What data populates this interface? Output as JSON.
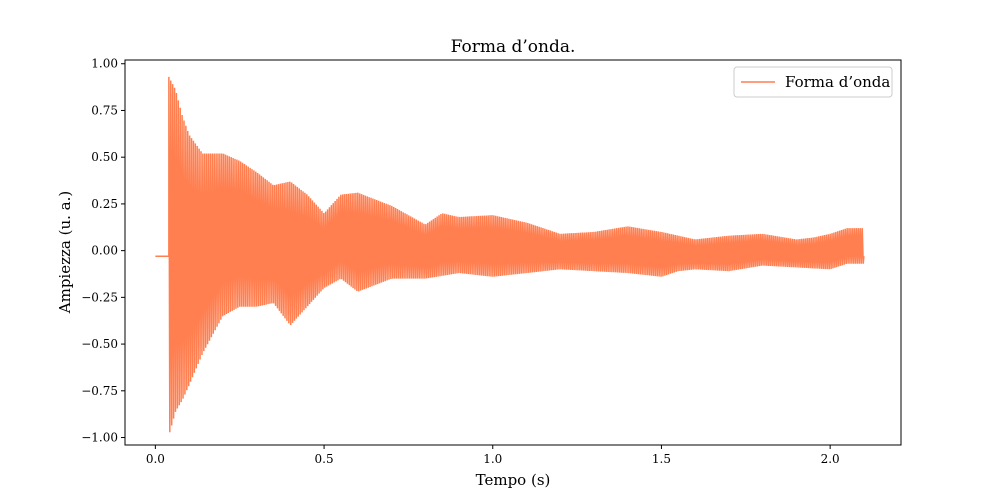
{
  "chart_data": {
    "type": "line",
    "title": "Forma d’onda.",
    "xlabel": "Tempo (s)",
    "ylabel": "Ampiezza (u. a.)",
    "xlim": [
      -0.09,
      2.21
    ],
    "ylim": [
      -1.04,
      1.02
    ],
    "xticks": [
      0.0,
      0.5,
      1.0,
      1.5,
      2.0
    ],
    "xtick_labels": [
      "0.0",
      "0.5",
      "1.0",
      "1.5",
      "2.0"
    ],
    "yticks": [
      1.0,
      0.75,
      0.5,
      0.25,
      0.0,
      -0.25,
      -0.5,
      -0.75,
      -1.0
    ],
    "ytick_labels": [
      "1.00",
      "0.75",
      "0.50",
      "0.25",
      "0.00",
      "−0.25",
      "−0.50",
      "−0.75",
      "−1.00"
    ],
    "grid": false,
    "legend_position": "top-right",
    "series": [
      {
        "name": "Forma d’onda",
        "color": "#ff7f50",
        "offset": -0.03,
        "onset": 0.04,
        "end": 2.1,
        "envelope_upper": [
          [
            0.04,
            0.93
          ],
          [
            0.06,
            0.86
          ],
          [
            0.08,
            0.72
          ],
          [
            0.1,
            0.62
          ],
          [
            0.14,
            0.52
          ],
          [
            0.2,
            0.52
          ],
          [
            0.25,
            0.48
          ],
          [
            0.3,
            0.42
          ],
          [
            0.35,
            0.35
          ],
          [
            0.4,
            0.37
          ],
          [
            0.45,
            0.3
          ],
          [
            0.5,
            0.2
          ],
          [
            0.55,
            0.3
          ],
          [
            0.6,
            0.31
          ],
          [
            0.7,
            0.24
          ],
          [
            0.8,
            0.14
          ],
          [
            0.85,
            0.2
          ],
          [
            0.9,
            0.18
          ],
          [
            1.0,
            0.19
          ],
          [
            1.1,
            0.15
          ],
          [
            1.2,
            0.09
          ],
          [
            1.3,
            0.1
          ],
          [
            1.4,
            0.13
          ],
          [
            1.5,
            0.1
          ],
          [
            1.6,
            0.06
          ],
          [
            1.7,
            0.08
          ],
          [
            1.8,
            0.09
          ],
          [
            1.9,
            0.06
          ],
          [
            1.95,
            0.07
          ],
          [
            2.0,
            0.09
          ],
          [
            2.05,
            0.12
          ],
          [
            2.1,
            0.12
          ]
        ],
        "envelope_lower": [
          [
            0.04,
            -0.99
          ],
          [
            0.06,
            -0.86
          ],
          [
            0.08,
            -0.8
          ],
          [
            0.1,
            -0.72
          ],
          [
            0.14,
            -0.55
          ],
          [
            0.2,
            -0.35
          ],
          [
            0.25,
            -0.3
          ],
          [
            0.3,
            -0.3
          ],
          [
            0.35,
            -0.28
          ],
          [
            0.4,
            -0.4
          ],
          [
            0.45,
            -0.3
          ],
          [
            0.5,
            -0.2
          ],
          [
            0.55,
            -0.15
          ],
          [
            0.6,
            -0.22
          ],
          [
            0.7,
            -0.15
          ],
          [
            0.8,
            -0.15
          ],
          [
            0.9,
            -0.12
          ],
          [
            1.0,
            -0.14
          ],
          [
            1.1,
            -0.12
          ],
          [
            1.2,
            -0.1
          ],
          [
            1.3,
            -0.11
          ],
          [
            1.4,
            -0.12
          ],
          [
            1.5,
            -0.14
          ],
          [
            1.55,
            -0.11
          ],
          [
            1.6,
            -0.1
          ],
          [
            1.7,
            -0.11
          ],
          [
            1.8,
            -0.08
          ],
          [
            1.9,
            -0.09
          ],
          [
            2.0,
            -0.1
          ],
          [
            2.05,
            -0.07
          ],
          [
            2.1,
            -0.07
          ]
        ]
      }
    ]
  }
}
